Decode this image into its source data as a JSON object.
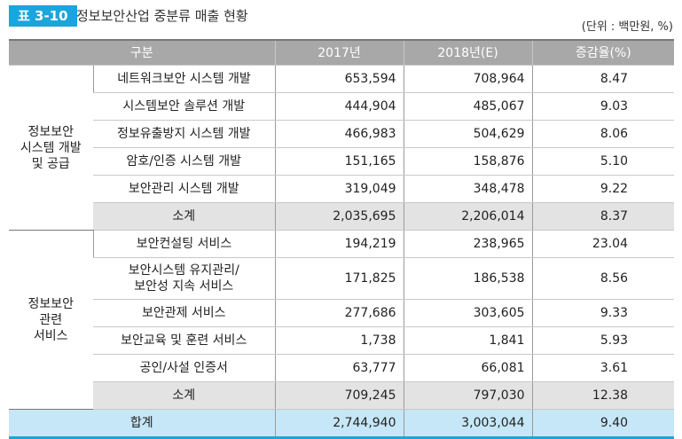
{
  "header": {
    "badge": "표 3-10",
    "title": "정보보안산업 중분류 매출 현황",
    "unit": "(단위 : 백만원, %)"
  },
  "table": {
    "columns": [
      "구분",
      "2017년",
      "2018년(E)",
      "증감율(%)"
    ],
    "groups": [
      {
        "label": "정보보안\n시스템 개발\n및 공급",
        "rows": [
          [
            "네트워크보안 시스템 개발",
            "653,594",
            "708,964",
            "8.47"
          ],
          [
            "시스템보안 솔루션 개발",
            "444,904",
            "485,067",
            "9.03"
          ],
          [
            "정보유출방지 시스템 개발",
            "466,983",
            "504,629",
            "8.06"
          ],
          [
            "암호/인증 시스템 개발",
            "151,165",
            "158,876",
            "5.10"
          ],
          [
            "보안관리 시스템 개발",
            "319,049",
            "348,478",
            "9.22"
          ]
        ],
        "subtotal": [
          "소계",
          "2,035,695",
          "2,206,014",
          "8.37"
        ]
      },
      {
        "label": "정보보안\n관련\n서비스",
        "rows": [
          [
            "보안컨설팅 서비스",
            "194,219",
            "238,965",
            "23.04"
          ],
          [
            "보안시스템 유지관리/\n보안성 지속 서비스",
            "171,825",
            "186,538",
            "8.56"
          ],
          [
            "보안관제 서비스",
            "277,686",
            "303,605",
            "9.33"
          ],
          [
            "보안교육 및 훈련 서비스",
            "1,738",
            "1,841",
            "5.93"
          ],
          [
            "공인/사설 인증서",
            "63,777",
            "66,081",
            "3.61"
          ]
        ],
        "subtotal": [
          "소계",
          "709,245",
          "797,030",
          "12.38"
        ]
      }
    ],
    "total": [
      "합계",
      "2,744,940",
      "3,003,044",
      "9.40"
    ]
  }
}
